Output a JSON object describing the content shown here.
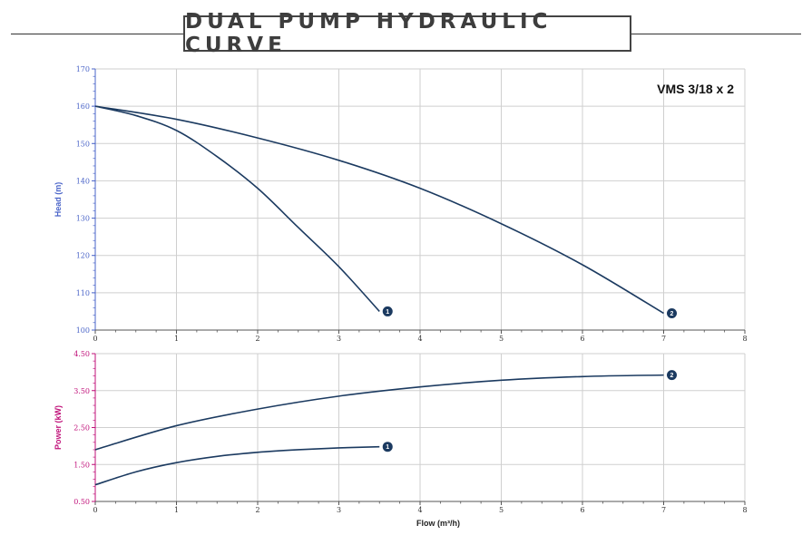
{
  "page_title": "DUAL PUMP HYDRAULIC CURVE",
  "colors": {
    "curve": "#1b3a60",
    "marker": "#1b3a60",
    "head_axis": "#4a64c8",
    "power_axis": "#c0127a",
    "grid": "#cfcfcf",
    "axis": "#555555"
  },
  "chart_data": [
    {
      "type": "line",
      "title": "VMS 3/18 x 2",
      "xlabel": "",
      "ylabel": "Head (m)",
      "xlim": [
        0,
        8
      ],
      "ylim": [
        100,
        170
      ],
      "x_ticks": [
        "0",
        "1",
        "2",
        "3",
        "4",
        "5",
        "6",
        "7",
        "8"
      ],
      "y_ticks": [
        "100",
        "110",
        "120",
        "130",
        "140",
        "150",
        "160",
        "170"
      ],
      "grid": true,
      "series": [
        {
          "name": "1",
          "x": [
            0,
            0.5,
            1,
            1.5,
            2,
            2.5,
            3,
            3.5
          ],
          "y": [
            160,
            157.5,
            153.5,
            146.5,
            138,
            127.5,
            117,
            105
          ]
        },
        {
          "name": "2",
          "x": [
            0,
            1,
            2,
            3,
            4,
            5,
            6,
            7
          ],
          "y": [
            160,
            156.5,
            151.5,
            145.5,
            138,
            128.5,
            117.5,
            104.5
          ]
        }
      ]
    },
    {
      "type": "line",
      "title": "",
      "xlabel": "Flow (m³/h)",
      "ylabel": "Power (kW)",
      "xlim": [
        0,
        8
      ],
      "ylim": [
        0.5,
        4.5
      ],
      "x_ticks": [
        "0",
        "1",
        "2",
        "3",
        "4",
        "5",
        "6",
        "7",
        "8"
      ],
      "y_ticks": [
        "0.50",
        "1.50",
        "2.50",
        "3.50",
        "4.50"
      ],
      "grid": true,
      "series": [
        {
          "name": "1",
          "x": [
            0,
            0.5,
            1,
            1.5,
            2,
            2.5,
            3,
            3.5
          ],
          "y": [
            0.95,
            1.3,
            1.55,
            1.72,
            1.83,
            1.9,
            1.95,
            1.98
          ]
        },
        {
          "name": "2",
          "x": [
            0,
            1,
            2,
            3,
            4,
            5,
            6,
            7
          ],
          "y": [
            1.9,
            2.55,
            3.0,
            3.35,
            3.6,
            3.78,
            3.88,
            3.92
          ]
        }
      ]
    }
  ]
}
